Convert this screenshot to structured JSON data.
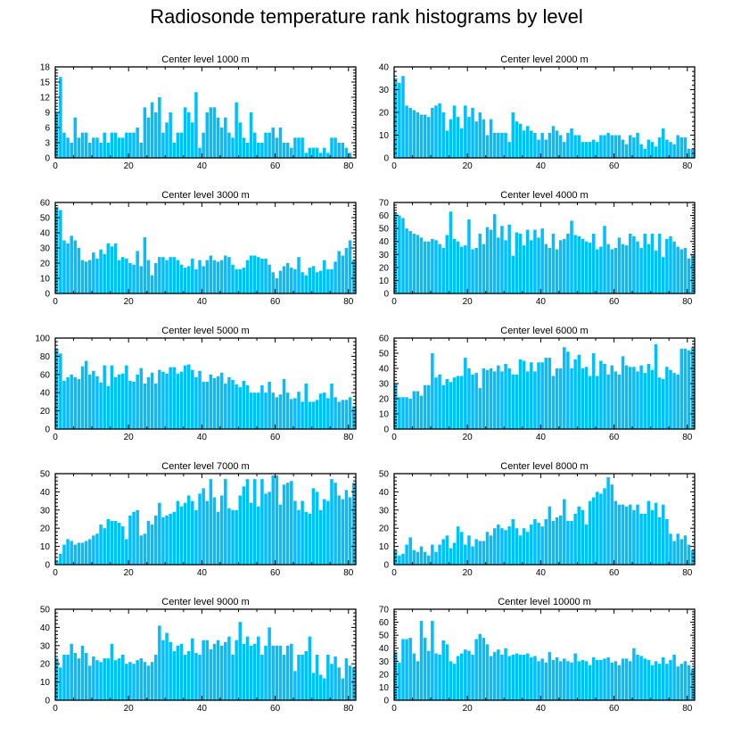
{
  "title": "Radiosonde temperature rank histograms by level",
  "colors": {
    "bar": "#00bfff",
    "axis": "#000000"
  },
  "chart_data": [
    {
      "type": "bar",
      "title": "Center level 1000 m",
      "xlim": [
        0,
        82
      ],
      "xticks": [
        0,
        20,
        40,
        60,
        80
      ],
      "ylim": [
        0,
        18
      ],
      "yticks": [
        0,
        3,
        6,
        9,
        12,
        15,
        18
      ],
      "values": [
        9,
        16,
        5,
        4,
        3,
        8,
        4,
        5,
        5,
        3,
        4,
        4,
        3,
        5,
        3,
        5,
        5,
        4,
        4,
        5,
        5,
        5,
        6,
        3,
        10,
        8,
        11,
        9,
        12,
        5,
        7,
        9,
        3,
        5,
        5,
        10,
        9,
        7,
        13,
        2,
        5,
        9,
        10,
        10,
        8,
        6,
        8,
        5,
        4,
        11,
        7,
        4,
        3,
        9,
        5,
        3,
        3,
        5,
        5,
        6,
        4,
        6,
        3,
        3,
        2,
        4,
        4,
        4,
        1,
        2,
        2,
        2,
        1,
        2,
        1,
        4,
        4,
        3,
        3,
        2,
        1
      ]
    },
    {
      "type": "bar",
      "title": "Center level 2000 m",
      "xlim": [
        0,
        82
      ],
      "xticks": [
        0,
        20,
        40,
        60,
        80
      ],
      "ylim": [
        0,
        40
      ],
      "yticks": [
        0,
        10,
        20,
        30,
        40
      ],
      "values": [
        35,
        33,
        36,
        23,
        22,
        21,
        20,
        19,
        19,
        18,
        22,
        23,
        24,
        20,
        12,
        17,
        23,
        18,
        13,
        23,
        18,
        22,
        16,
        20,
        17,
        10,
        17,
        11,
        11,
        11,
        11,
        7,
        20,
        16,
        15,
        12,
        14,
        12,
        11,
        8,
        11,
        8,
        11,
        14,
        12,
        10,
        7,
        11,
        13,
        10,
        10,
        7,
        7,
        7,
        8,
        7,
        10,
        10,
        11,
        10,
        10,
        10,
        8,
        6,
        10,
        9,
        11,
        6,
        4,
        8,
        7,
        5,
        9,
        13,
        8,
        7,
        6,
        10,
        9,
        9,
        4,
        4
      ]
    },
    {
      "type": "bar",
      "title": "Center level 3000 m",
      "xlim": [
        0,
        82
      ],
      "xticks": [
        0,
        20,
        40,
        60,
        80
      ],
      "ylim": [
        0,
        60
      ],
      "yticks": [
        0,
        10,
        20,
        30,
        40,
        50,
        60
      ],
      "values": [
        57,
        55,
        35,
        33,
        38,
        35,
        30,
        22,
        21,
        22,
        27,
        23,
        29,
        26,
        33,
        31,
        33,
        22,
        24,
        23,
        20,
        19,
        28,
        18,
        37,
        22,
        12,
        20,
        24,
        24,
        22,
        24,
        24,
        22,
        19,
        17,
        18,
        23,
        16,
        22,
        18,
        22,
        25,
        22,
        21,
        22,
        25,
        24,
        19,
        16,
        16,
        17,
        22,
        25,
        25,
        24,
        23,
        23,
        19,
        14,
        10,
        15,
        18,
        20,
        17,
        16,
        24,
        14,
        12,
        17,
        18,
        14,
        15,
        22,
        16,
        16,
        21,
        28,
        25,
        30,
        35,
        22
      ]
    },
    {
      "type": "bar",
      "title": "Center level 4000 m",
      "xlim": [
        0,
        82
      ],
      "xticks": [
        0,
        20,
        40,
        60,
        80
      ],
      "ylim": [
        0,
        70
      ],
      "yticks": [
        0,
        10,
        20,
        30,
        40,
        50,
        60,
        70
      ],
      "values": [
        62,
        60,
        58,
        50,
        48,
        46,
        45,
        43,
        40,
        40,
        42,
        41,
        38,
        35,
        45,
        63,
        42,
        40,
        36,
        37,
        57,
        34,
        35,
        46,
        38,
        51,
        49,
        61,
        43,
        52,
        41,
        53,
        29,
        47,
        46,
        37,
        49,
        41,
        49,
        43,
        50,
        38,
        35,
        46,
        34,
        41,
        42,
        46,
        56,
        45,
        44,
        42,
        40,
        39,
        46,
        34,
        36,
        52,
        38,
        34,
        35,
        43,
        38,
        37,
        46,
        44,
        40,
        35,
        46,
        38,
        46,
        33,
        46,
        28,
        42,
        44,
        40,
        36,
        34,
        35,
        27,
        30
      ]
    },
    {
      "type": "bar",
      "title": "Center level 5000 m",
      "xlim": [
        0,
        82
      ],
      "xticks": [
        0,
        20,
        40,
        60,
        80
      ],
      "ylim": [
        0,
        100
      ],
      "yticks": [
        0,
        20,
        40,
        60,
        80,
        100
      ],
      "values": [
        88,
        83,
        53,
        57,
        60,
        57,
        55,
        69,
        75,
        60,
        64,
        58,
        51,
        70,
        47,
        70,
        57,
        60,
        61,
        70,
        53,
        52,
        60,
        67,
        50,
        57,
        62,
        50,
        65,
        63,
        61,
        68,
        68,
        61,
        63,
        70,
        71,
        65,
        57,
        64,
        52,
        52,
        60,
        56,
        58,
        62,
        50,
        57,
        54,
        49,
        46,
        53,
        48,
        40,
        40,
        40,
        48,
        40,
        52,
        40,
        35,
        38,
        55,
        40,
        33,
        34,
        41,
        30,
        50,
        30,
        30,
        32,
        39,
        40,
        34,
        50,
        35,
        30,
        32,
        32,
        35,
        25
      ]
    },
    {
      "type": "bar",
      "title": "Center level 6000 m",
      "xlim": [
        0,
        82
      ],
      "xticks": [
        0,
        20,
        40,
        60,
        80
      ],
      "ylim": [
        0,
        60
      ],
      "yticks": [
        0,
        10,
        20,
        30,
        40,
        50,
        60
      ],
      "values": [
        30,
        21,
        21,
        21,
        20,
        25,
        25,
        22,
        29,
        29,
        50,
        34,
        36,
        29,
        33,
        31,
        34,
        35,
        35,
        47,
        40,
        36,
        37,
        27,
        40,
        39,
        40,
        38,
        42,
        38,
        43,
        40,
        36,
        36,
        46,
        45,
        38,
        44,
        38,
        44,
        44,
        47,
        47,
        35,
        40,
        40,
        54,
        51,
        40,
        46,
        49,
        40,
        41,
        35,
        50,
        35,
        45,
        43,
        36,
        42,
        38,
        36,
        48,
        42,
        41,
        41,
        38,
        42,
        37,
        43,
        39,
        56,
        34,
        33,
        41,
        39,
        37,
        36,
        53,
        53,
        52,
        54
      ]
    },
    {
      "type": "bar",
      "title": "Center level 7000 m",
      "xlim": [
        0,
        82
      ],
      "xticks": [
        0,
        20,
        40,
        60,
        80
      ],
      "ylim": [
        0,
        50
      ],
      "yticks": [
        0,
        10,
        20,
        30,
        40,
        50
      ],
      "values": [
        2,
        6,
        11,
        14,
        13,
        11,
        12,
        12,
        13,
        14,
        16,
        17,
        22,
        20,
        25,
        24,
        24,
        23,
        21,
        14,
        27,
        29,
        30,
        16,
        17,
        24,
        22,
        27,
        34,
        26,
        27,
        28,
        29,
        35,
        32,
        34,
        38,
        35,
        30,
        39,
        42,
        35,
        47,
        37,
        29,
        38,
        47,
        31,
        30,
        30,
        38,
        43,
        47,
        34,
        47,
        32,
        47,
        39,
        40,
        49,
        49,
        33,
        44,
        45,
        46,
        35,
        30,
        35,
        29,
        28,
        42,
        40,
        30,
        36,
        35,
        47,
        45,
        38,
        36,
        41,
        37,
        45
      ]
    },
    {
      "type": "bar",
      "title": "Center level 8000 m",
      "xlim": [
        0,
        82
      ],
      "xticks": [
        0,
        20,
        40,
        60,
        80
      ],
      "ylim": [
        0,
        50
      ],
      "yticks": [
        0,
        10,
        20,
        30,
        40,
        50
      ],
      "values": [
        8,
        5,
        6,
        11,
        15,
        8,
        7,
        10,
        7,
        5,
        11,
        7,
        11,
        14,
        16,
        9,
        12,
        21,
        18,
        11,
        16,
        10,
        14,
        13,
        13,
        18,
        16,
        20,
        22,
        20,
        19,
        21,
        25,
        20,
        16,
        20,
        18,
        22,
        25,
        23,
        21,
        25,
        32,
        24,
        26,
        27,
        36,
        24,
        24,
        28,
        32,
        30,
        22,
        35,
        37,
        40,
        39,
        42,
        48,
        44,
        35,
        33,
        33,
        32,
        33,
        30,
        33,
        28,
        28,
        35,
        30,
        34,
        26,
        33,
        25,
        17,
        13,
        17,
        14,
        16,
        11,
        8
      ]
    },
    {
      "type": "bar",
      "title": "Center level 9000 m",
      "xlim": [
        0,
        82
      ],
      "xticks": [
        0,
        20,
        40,
        60,
        80
      ],
      "ylim": [
        0,
        50
      ],
      "yticks": [
        0,
        10,
        20,
        30,
        40,
        50
      ],
      "values": [
        23,
        18,
        25,
        25,
        31,
        26,
        23,
        30,
        26,
        19,
        24,
        22,
        21,
        23,
        23,
        31,
        22,
        23,
        25,
        20,
        21,
        20,
        22,
        23,
        21,
        19,
        21,
        25,
        41,
        33,
        37,
        32,
        27,
        30,
        31,
        25,
        27,
        34,
        26,
        25,
        33,
        33,
        28,
        31,
        33,
        30,
        32,
        35,
        25,
        33,
        43,
        31,
        35,
        30,
        31,
        35,
        25,
        30,
        40,
        30,
        30,
        30,
        25,
        30,
        31,
        16,
        25,
        25,
        27,
        35,
        15,
        25,
        14,
        12,
        25,
        20,
        24,
        18,
        12,
        23,
        19,
        18
      ]
    },
    {
      "type": "bar",
      "title": "Center level 10000 m",
      "xlim": [
        0,
        82
      ],
      "xticks": [
        0,
        20,
        40,
        60,
        80
      ],
      "ylim": [
        0,
        70
      ],
      "yticks": [
        0,
        10,
        20,
        30,
        40,
        50,
        60,
        70
      ],
      "values": [
        37,
        29,
        47,
        47,
        48,
        36,
        30,
        61,
        48,
        38,
        61,
        36,
        35,
        46,
        43,
        30,
        28,
        34,
        36,
        39,
        38,
        35,
        47,
        51,
        48,
        43,
        34,
        37,
        39,
        35,
        40,
        34,
        35,
        36,
        35,
        35,
        36,
        33,
        34,
        30,
        32,
        29,
        37,
        31,
        33,
        30,
        32,
        30,
        29,
        36,
        30,
        31,
        30,
        27,
        33,
        31,
        31,
        32,
        33,
        29,
        30,
        27,
        32,
        32,
        30,
        40,
        35,
        34,
        32,
        31,
        27,
        30,
        28,
        33,
        28,
        31,
        35,
        26,
        28,
        30,
        27,
        24
      ]
    }
  ]
}
